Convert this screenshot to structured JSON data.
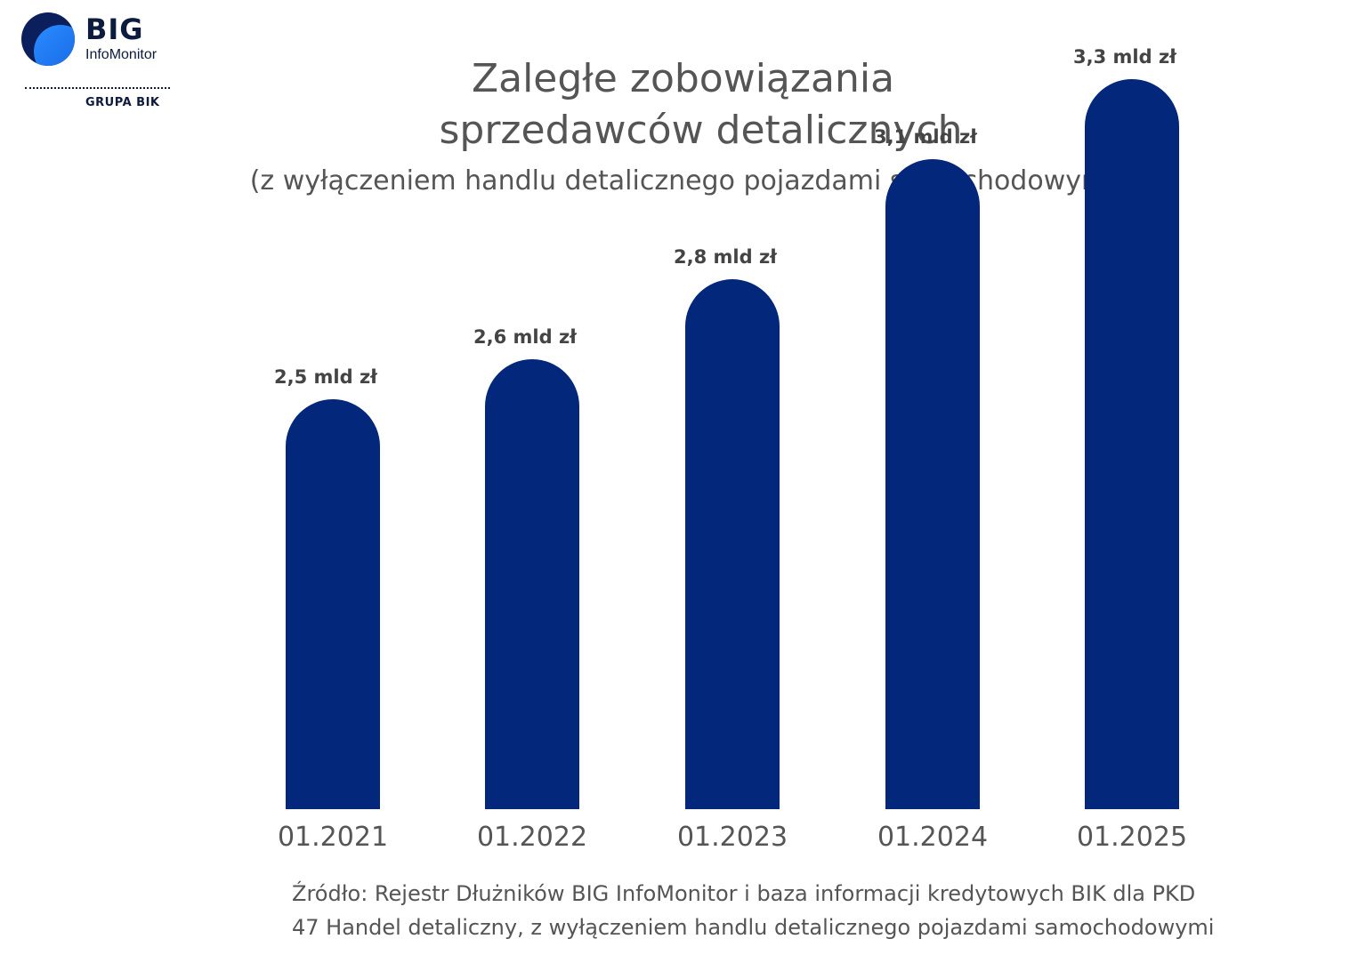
{
  "logo": {
    "brand": "BIG",
    "product": "InfoMonitor",
    "group": "GRUPA BIK"
  },
  "colors": {
    "bar": "#03277a",
    "text": "#555555",
    "value_label": "#444444"
  },
  "chart_data": {
    "type": "bar",
    "title_line1": "Zaległe zobowiązania",
    "title_line2": "sprzedawców detalicznych",
    "subtitle": "(z wyłączeniem handlu detalicznego pojazdami samochodowymi)",
    "categories": [
      "01.2021",
      "01.2022",
      "01.2023",
      "01.2024",
      "01.2025"
    ],
    "values": [
      2.5,
      2.6,
      2.8,
      3.1,
      3.3
    ],
    "value_labels": [
      "2,5 mld zł",
      "2,6 mld zł",
      "2,8 mld zł",
      "3,1 mld zł",
      "3,3 mld zł"
    ],
    "unit": "mld zł",
    "grid": false,
    "legend": "none"
  },
  "source": {
    "line1": "Źródło: Rejestr Dłużników BIG InfoMonitor i baza informacji kredytowych BIK dla PKD",
    "line2": "47 Handel detaliczny, z wyłączeniem handlu detalicznego pojazdami samochodowymi"
  }
}
